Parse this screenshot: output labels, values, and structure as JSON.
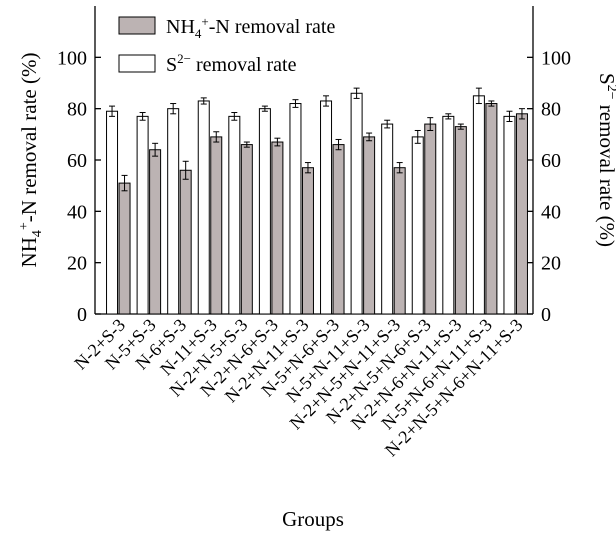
{
  "chart_data": {
    "type": "bar",
    "title": "",
    "xlabel": "Groups",
    "ylabel_left": "NH4+-N removal rate (%)",
    "ylabel_right": "S2− removal rate (%)",
    "ylim": [
      0,
      120
    ],
    "yticks": [
      0,
      20,
      40,
      60,
      80,
      100
    ],
    "grid": false,
    "legend_position": "top-left",
    "categories": [
      "N-2+S-3",
      "N-5+S-3",
      "N-6+S-3",
      "N-11+S-3",
      "N-2+N-5+S-3",
      "N-2+N-6+S-3",
      "N-2+N-11+S-3",
      "N-5+N-6+S-3",
      "N-5+N-11+S-3",
      "N-2+N-5+N-11+S-3",
      "N-2+N-5+N-6+S-3",
      "N-2+N-6+N-11+S-3",
      "N-5+N-6+N-11+S-3",
      "N-2+N-5+N-6+N-11+S-3"
    ],
    "series": [
      {
        "name": "S2− removal rate",
        "color": "#ffffff",
        "values": [
          79,
          77,
          80,
          83,
          77,
          80,
          82,
          83,
          86,
          74,
          69,
          77,
          85,
          77
        ],
        "errors": [
          2,
          1.5,
          2,
          1.2,
          1.5,
          1,
          1.5,
          2,
          2,
          1.5,
          2.5,
          1,
          3,
          2
        ]
      },
      {
        "name": "NH4+-N removal rate",
        "color": "#bcb3b3",
        "values": [
          51,
          64,
          56,
          69,
          66,
          67,
          57,
          66,
          69,
          57,
          74,
          73,
          82,
          78
        ],
        "errors": [
          3,
          2.5,
          3.5,
          2,
          1,
          1.5,
          2,
          2,
          1.5,
          2,
          2.5,
          1,
          1,
          2
        ]
      }
    ]
  },
  "legend": {
    "nh4_main": "NH",
    "nh4_sub": "4",
    "nh4_sup": "+",
    "nh4_rest": "-N removal rate",
    "s_main": "S",
    "s_sup": "2−",
    "s_rest": " removal rate"
  },
  "axes": {
    "left_title_main": "NH",
    "left_title_sub": "4",
    "left_title_sup": "+",
    "left_title_rest": "-N removal rate (%)",
    "right_title_main": "S",
    "right_title_sup": "2−",
    "right_title_rest": " removal rate (%)",
    "xlabel": "Groups"
  }
}
